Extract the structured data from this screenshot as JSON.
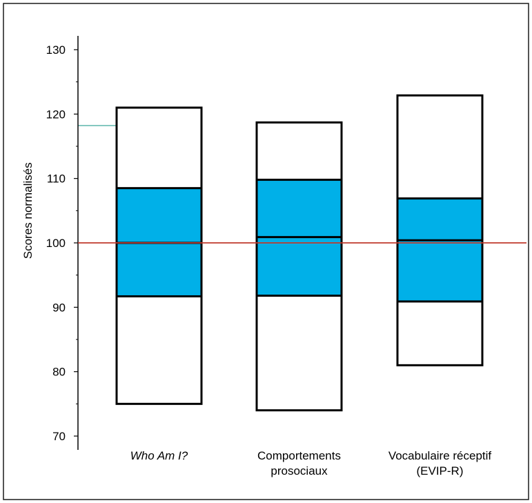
{
  "chart_data": {
    "type": "box",
    "ylabel": "Scores normalisés",
    "ylim": [
      70,
      130
    ],
    "yticks": [
      70,
      80,
      90,
      100,
      110,
      120,
      130
    ],
    "reference_line": {
      "value": 100,
      "color": "#c0392b"
    },
    "box_fill": "#00b0e8",
    "categories": [
      {
        "lines": [
          "Who Am I?"
        ],
        "italic": true
      },
      {
        "lines": [
          "Comportements",
          "prosociaux"
        ],
        "italic": false
      },
      {
        "lines": [
          "Vocabulaire réceptif",
          "(EVIP-R)"
        ],
        "italic": false
      }
    ],
    "series": [
      {
        "min": 75,
        "q1": 91.7,
        "median": 100,
        "q3": 108.5,
        "max": 121
      },
      {
        "min": 74,
        "q1": 91.8,
        "median": 100.9,
        "q3": 109.8,
        "max": 118.7
      },
      {
        "min": 81,
        "q1": 90.9,
        "median": 100.4,
        "q3": 106.9,
        "max": 122.9
      }
    ],
    "grid": false
  }
}
